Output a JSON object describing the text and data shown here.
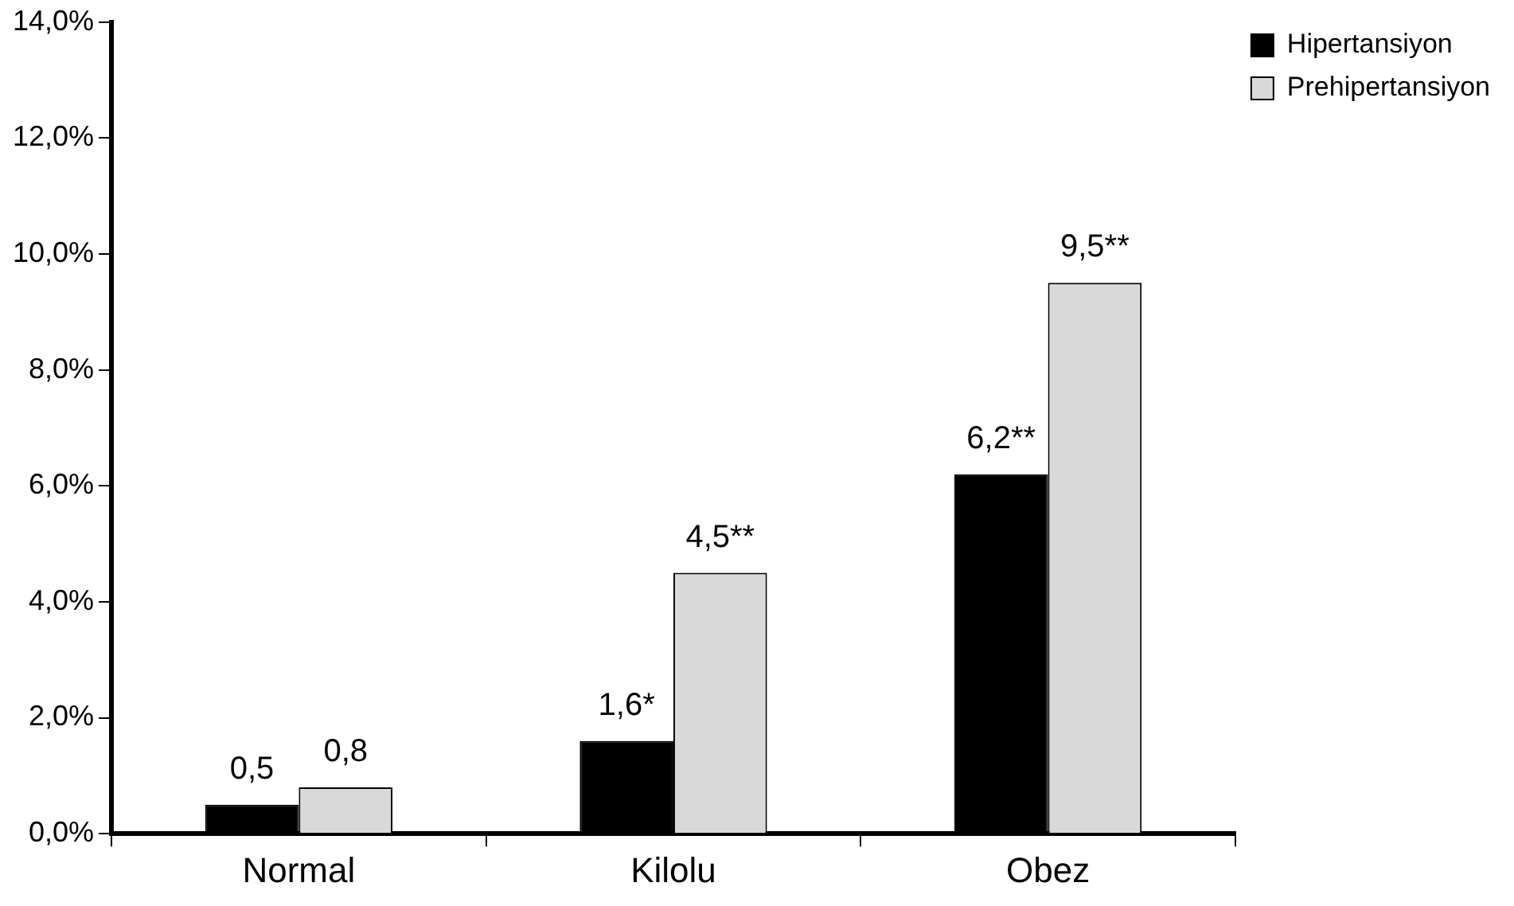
{
  "chart_data": {
    "type": "bar",
    "categories": [
      "Normal",
      "Kilolu",
      "Obez"
    ],
    "series": [
      {
        "name": "Hipertansiyon",
        "color": "#000000",
        "values": [
          0.5,
          1.6,
          6.2
        ],
        "value_labels": [
          "0,5",
          "1,6*",
          "6,2**"
        ]
      },
      {
        "name": "Prehipertansiyon",
        "color": "#d9d9d9",
        "values": [
          0.8,
          4.5,
          9.5
        ],
        "value_labels": [
          "0,8",
          "4,5**",
          "9,5**"
        ]
      }
    ],
    "ylim": [
      0,
      14
    ],
    "yticks": [
      {
        "value": 0,
        "label": "0,0%"
      },
      {
        "value": 2,
        "label": "2,0%"
      },
      {
        "value": 4,
        "label": "4,0%"
      },
      {
        "value": 6,
        "label": "6,0%"
      },
      {
        "value": 8,
        "label": "8,0%"
      },
      {
        "value": 10,
        "label": "10,0%"
      },
      {
        "value": 12,
        "label": "12,0%"
      },
      {
        "value": 14,
        "label": "14,0%"
      }
    ],
    "grid": false,
    "legend": "top right"
  }
}
